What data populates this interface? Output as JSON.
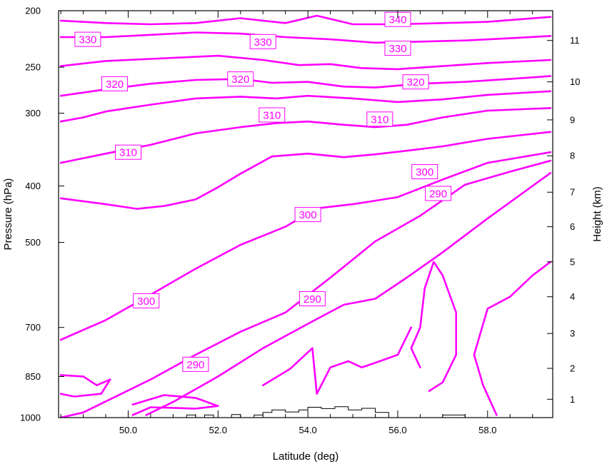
{
  "chart_data": {
    "type": "contour",
    "xlabel": "Latitude (deg)",
    "ylabel": "Pressure (hPa)",
    "y2label": "Height (km)",
    "xlim": [
      48.45,
      59.45
    ],
    "ylim_hpa": [
      1000,
      200
    ],
    "y_scale": "log",
    "x_ticks": [
      {
        "value": 50,
        "label": "50.0"
      },
      {
        "value": 52,
        "label": "52.0"
      },
      {
        "value": 54,
        "label": "54.0"
      },
      {
        "value": 56,
        "label": "56.0"
      },
      {
        "value": 58,
        "label": "58.0"
      }
    ],
    "y_ticks": [
      {
        "value": 200,
        "label": "200"
      },
      {
        "value": 250,
        "label": "250"
      },
      {
        "value": 300,
        "label": "300"
      },
      {
        "value": 400,
        "label": "400"
      },
      {
        "value": 500,
        "label": "500"
      },
      {
        "value": 700,
        "label": "700"
      },
      {
        "value": 850,
        "label": "850"
      },
      {
        "value": 1000,
        "label": "1000"
      }
    ],
    "y2_ticks": [
      {
        "p": 930,
        "label": "1"
      },
      {
        "p": 823,
        "label": "2"
      },
      {
        "p": 717,
        "label": "3"
      },
      {
        "p": 620,
        "label": "4"
      },
      {
        "p": 540,
        "label": "5"
      },
      {
        "p": 470,
        "label": "6"
      },
      {
        "p": 410,
        "label": "7"
      },
      {
        "p": 355,
        "label": "8"
      },
      {
        "p": 308,
        "label": "9"
      },
      {
        "p": 265,
        "label": "10"
      },
      {
        "p": 225,
        "label": "11"
      }
    ],
    "contour_color": "#ff00ff",
    "terrain_color": "#000000",
    "contours": [
      {
        "value": 340,
        "points": [
          [
            48.5,
            208
          ],
          [
            49.5,
            210
          ],
          [
            50.5,
            211
          ],
          [
            51.5,
            210
          ],
          [
            52.5,
            206
          ],
          [
            53.5,
            210
          ],
          [
            54.2,
            204
          ],
          [
            55,
            211
          ],
          [
            56,
            211
          ],
          [
            57,
            210
          ],
          [
            58,
            209
          ],
          [
            59.4,
            205
          ]
        ]
      },
      {
        "value": 330,
        "points": [
          [
            48.5,
            222
          ],
          [
            49.5,
            222
          ],
          [
            50.5,
            220
          ],
          [
            51.5,
            218
          ],
          [
            52.5,
            219
          ],
          [
            53.5,
            222
          ],
          [
            54.5,
            224
          ],
          [
            55.5,
            227
          ],
          [
            56.5,
            226
          ],
          [
            57.5,
            225
          ],
          [
            58.5,
            223
          ],
          [
            59.4,
            221
          ]
        ]
      },
      {
        "value": 330,
        "points": [
          [
            48.5,
            249
          ],
          [
            49.5,
            244
          ],
          [
            50.5,
            242
          ],
          [
            51.5,
            240
          ],
          [
            52,
            239
          ],
          [
            53,
            243
          ],
          [
            53.8,
            248
          ],
          [
            54.5,
            247
          ],
          [
            55.2,
            251
          ],
          [
            56,
            252
          ],
          [
            57,
            249
          ],
          [
            58,
            246
          ],
          [
            59.4,
            243
          ]
        ]
      },
      {
        "value": 320,
        "points": [
          [
            48.5,
            280
          ],
          [
            49.5,
            273
          ],
          [
            50.5,
            267
          ],
          [
            51.5,
            263
          ],
          [
            52.5,
            262
          ],
          [
            53.2,
            266
          ],
          [
            54,
            265
          ],
          [
            54.8,
            270
          ],
          [
            55.5,
            271
          ],
          [
            56.5,
            267
          ],
          [
            57.5,
            265
          ],
          [
            58.5,
            262
          ],
          [
            59.4,
            259
          ]
        ]
      },
      {
        "value": 320,
        "points": [
          [
            48.5,
            310
          ],
          [
            49,
            305
          ],
          [
            49.5,
            298
          ],
          [
            50.5,
            290
          ],
          [
            51.5,
            283
          ],
          [
            52.5,
            281
          ],
          [
            53.3,
            283
          ],
          [
            54,
            280
          ],
          [
            55,
            283
          ],
          [
            56,
            287
          ],
          [
            57,
            284
          ],
          [
            58,
            279
          ],
          [
            59.4,
            275
          ]
        ]
      },
      {
        "value": 310,
        "points": [
          [
            48.5,
            365
          ],
          [
            49.5,
            352
          ],
          [
            50.5,
            340
          ],
          [
            51.5,
            325
          ],
          [
            52.5,
            317
          ],
          [
            53.3,
            312
          ],
          [
            54,
            310
          ],
          [
            54.8,
            314
          ],
          [
            55.5,
            317
          ],
          [
            56.2,
            314
          ],
          [
            57,
            305
          ],
          [
            58,
            297
          ],
          [
            59.4,
            294
          ]
        ]
      },
      {
        "value": 310,
        "points": [
          [
            48.5,
            420
          ],
          [
            49.5,
            430
          ],
          [
            50.2,
            438
          ],
          [
            50.8,
            433
          ],
          [
            51.5,
            422
          ],
          [
            52,
            402
          ],
          [
            52.5,
            381
          ],
          [
            53.2,
            356
          ],
          [
            54,
            352
          ],
          [
            54.8,
            357
          ],
          [
            55.5,
            353
          ],
          [
            56.2,
            348
          ],
          [
            57,
            342
          ],
          [
            58,
            332
          ],
          [
            59.4,
            323
          ]
        ]
      },
      {
        "value": 300,
        "points": [
          [
            48.5,
            735
          ],
          [
            49.5,
            680
          ],
          [
            50.5,
            615
          ],
          [
            51.5,
            555
          ],
          [
            52.5,
            505
          ],
          [
            53.5,
            470
          ],
          [
            54.2,
            437
          ],
          [
            55,
            430
          ],
          [
            56,
            418
          ],
          [
            57,
            390
          ],
          [
            58,
            365
          ],
          [
            59.4,
            350
          ]
        ]
      },
      {
        "value": 300,
        "points": [
          [
            48.5,
            1000
          ],
          [
            49,
            980
          ],
          [
            49.6,
            930
          ],
          [
            50.5,
            860
          ],
          [
            51.5,
            780
          ],
          [
            52.5,
            712
          ],
          [
            53.5,
            660
          ],
          [
            54.5,
            575
          ],
          [
            55.5,
            498
          ],
          [
            56.5,
            450
          ],
          [
            57.5,
            398
          ],
          [
            58.5,
            378
          ],
          [
            59.4,
            362
          ]
        ]
      },
      {
        "value": 290,
        "points": [
          [
            50.4,
            990
          ],
          [
            51,
            940
          ],
          [
            52,
            850
          ],
          [
            53,
            760
          ],
          [
            54,
            690
          ],
          [
            54.8,
            640
          ],
          [
            55.5,
            625
          ],
          [
            56.2,
            575
          ],
          [
            57,
            520
          ],
          [
            58,
            455
          ],
          [
            59,
            400
          ],
          [
            59.4,
            380
          ]
        ]
      },
      {
        "value": 290,
        "points": [
          [
            53,
            880
          ],
          [
            53.6,
            825
          ],
          [
            54.1,
            760
          ],
          [
            54.2,
            910
          ],
          [
            54.5,
            820
          ],
          [
            54.9,
            800
          ],
          [
            55.2,
            820
          ],
          [
            55.6,
            800
          ],
          [
            56,
            780
          ],
          [
            56.3,
            700
          ]
        ]
      },
      {
        "value": 290,
        "points": [
          [
            56.5,
            820
          ],
          [
            56.3,
            760
          ],
          [
            56.5,
            700
          ],
          [
            56.6,
            600
          ],
          [
            56.8,
            540
          ],
          [
            57,
            570
          ],
          [
            57.3,
            660
          ],
          [
            57.3,
            780
          ],
          [
            57,
            870
          ],
          [
            56.7,
            900
          ]
        ]
      },
      {
        "value": 290,
        "points": [
          [
            59.4,
            540
          ],
          [
            59,
            570
          ],
          [
            58.5,
            620
          ],
          [
            58,
            650
          ],
          [
            57.7,
            780
          ],
          [
            57.9,
            880
          ],
          [
            58.2,
            990
          ]
        ]
      },
      {
        "value": 290,
        "points": [
          [
            48.5,
            845
          ],
          [
            49,
            850
          ],
          [
            49.3,
            880
          ],
          [
            49.6,
            860
          ],
          [
            49.4,
            910
          ],
          [
            48.8,
            920
          ],
          [
            48.5,
            910
          ]
        ]
      },
      {
        "value": 290,
        "points": [
          [
            50.1,
            950
          ],
          [
            50.8,
            915
          ],
          [
            51.5,
            925
          ],
          [
            52,
            955
          ],
          [
            51.5,
            965
          ],
          [
            50.5,
            960
          ],
          [
            50.1,
            990
          ]
        ]
      }
    ],
    "contour_labels": [
      {
        "text": "340",
        "lat": 56.0,
        "p": 207
      },
      {
        "text": "330",
        "lat": 49.1,
        "p": 224
      },
      {
        "text": "330",
        "lat": 53.0,
        "p": 226
      },
      {
        "text": "330",
        "lat": 56.0,
        "p": 232
      },
      {
        "text": "320",
        "lat": 49.7,
        "p": 267
      },
      {
        "text": "320",
        "lat": 52.5,
        "p": 262
      },
      {
        "text": "320",
        "lat": 56.4,
        "p": 265
      },
      {
        "text": "310",
        "lat": 53.2,
        "p": 302
      },
      {
        "text": "310",
        "lat": 55.6,
        "p": 307
      },
      {
        "text": "310",
        "lat": 50.0,
        "p": 350
      },
      {
        "text": "300",
        "lat": 56.6,
        "p": 378
      },
      {
        "text": "290",
        "lat": 56.9,
        "p": 412
      },
      {
        "text": "300",
        "lat": 54.0,
        "p": 448
      },
      {
        "text": "300",
        "lat": 50.4,
        "p": 630
      },
      {
        "text": "290",
        "lat": 54.1,
        "p": 625
      },
      {
        "text": "290",
        "lat": 51.5,
        "p": 810
      }
    ],
    "terrain": [
      [
        51.3,
        1000
      ],
      [
        51.3,
        990
      ],
      [
        51.5,
        990
      ],
      [
        51.5,
        1000
      ],
      [
        51.7,
        1000
      ],
      [
        51.7,
        990
      ],
      [
        51.9,
        990
      ],
      [
        51.9,
        1000
      ],
      [
        52.3,
        1000
      ],
      [
        52.3,
        988
      ],
      [
        52.5,
        988
      ],
      [
        52.5,
        1000
      ],
      [
        52.8,
        1000
      ],
      [
        52.8,
        990
      ],
      [
        53,
        990
      ],
      [
        53,
        980
      ],
      [
        53.2,
        980
      ],
      [
        53.2,
        970
      ],
      [
        53.5,
        970
      ],
      [
        53.5,
        978
      ],
      [
        53.8,
        978
      ],
      [
        53.8,
        970
      ],
      [
        54,
        970
      ],
      [
        54,
        960
      ],
      [
        54.3,
        960
      ],
      [
        54.3,
        965
      ],
      [
        54.6,
        965
      ],
      [
        54.6,
        958
      ],
      [
        54.9,
        958
      ],
      [
        54.9,
        970
      ],
      [
        55.2,
        970
      ],
      [
        55.2,
        964
      ],
      [
        55.5,
        964
      ],
      [
        55.5,
        980
      ],
      [
        55.8,
        980
      ],
      [
        55.8,
        1000
      ],
      [
        57,
        1000
      ],
      [
        57,
        990
      ],
      [
        57.5,
        990
      ],
      [
        57.5,
        1000
      ]
    ]
  }
}
